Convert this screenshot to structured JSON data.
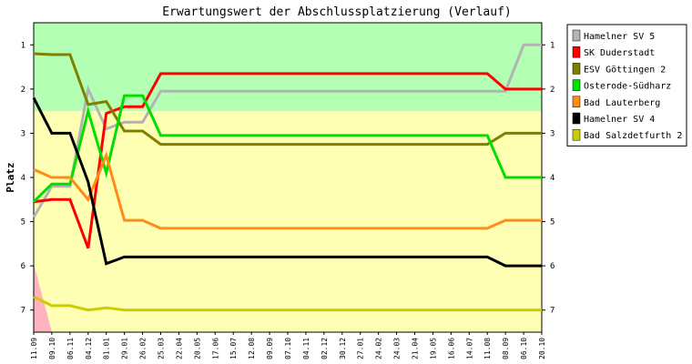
{
  "chart_data": {
    "type": "line",
    "title": "Erwartungswert der Abschlussplatzierung (Verlauf)",
    "ylabel": "Platz",
    "xlabel": "",
    "ylim": [
      7.5,
      0.5
    ],
    "yticks": [
      1,
      2,
      3,
      4,
      5,
      6,
      7
    ],
    "legend_position": "right",
    "grid": false,
    "bands": [
      {
        "from": 0.5,
        "to": 2.5,
        "color": "#b3ffb3"
      },
      {
        "from": 2.5,
        "to": 7.5,
        "color": "#ffffb3"
      }
    ],
    "relegation_shade_color": "#ffb3c1",
    "categories": [
      "11.09",
      "09.10",
      "06.11",
      "04.12",
      "01.01",
      "29.01",
      "26.02",
      "25.03",
      "22.04",
      "20.05",
      "17.06",
      "15.07",
      "12.08",
      "09.09",
      "07.10",
      "04.11",
      "02.12",
      "30.12",
      "27.01",
      "24.02",
      "24.03",
      "21.04",
      "19.05",
      "16.06",
      "14.07",
      "11.08",
      "08.09",
      "06.10",
      "20.10"
    ],
    "series": [
      {
        "name": "Hamelner SV 5",
        "color": "#b3b3b3",
        "values": [
          4.9,
          4.2,
          4.2,
          2.0,
          2.9,
          2.75,
          2.75,
          2.05,
          2.05,
          2.05,
          2.05,
          2.05,
          2.05,
          2.05,
          2.05,
          2.05,
          2.05,
          2.05,
          2.05,
          2.05,
          2.05,
          2.05,
          2.05,
          2.05,
          2.05,
          2.05,
          2.05,
          1.0,
          1.0
        ]
      },
      {
        "name": "SK Duderstadt",
        "color": "#ff0000",
        "values": [
          4.55,
          4.5,
          4.5,
          5.6,
          2.55,
          2.4,
          2.4,
          1.65,
          1.65,
          1.65,
          1.65,
          1.65,
          1.65,
          1.65,
          1.65,
          1.65,
          1.65,
          1.65,
          1.65,
          1.65,
          1.65,
          1.65,
          1.65,
          1.65,
          1.65,
          1.65,
          2.0,
          2.0,
          2.0
        ]
      },
      {
        "name": "ESV Göttingen 2",
        "color": "#808000",
        "values": [
          1.2,
          1.22,
          1.22,
          2.35,
          2.28,
          2.95,
          2.95,
          3.25,
          3.25,
          3.25,
          3.25,
          3.25,
          3.25,
          3.25,
          3.25,
          3.25,
          3.25,
          3.25,
          3.25,
          3.25,
          3.25,
          3.25,
          3.25,
          3.25,
          3.25,
          3.25,
          3.0,
          3.0,
          3.0
        ]
      },
      {
        "name": "Osterode-Südharz",
        "color": "#00e000",
        "values": [
          4.55,
          4.15,
          4.15,
          2.5,
          3.9,
          2.15,
          2.15,
          3.05,
          3.05,
          3.05,
          3.05,
          3.05,
          3.05,
          3.05,
          3.05,
          3.05,
          3.05,
          3.05,
          3.05,
          3.05,
          3.05,
          3.05,
          3.05,
          3.05,
          3.05,
          3.05,
          4.0,
          4.0,
          4.0
        ]
      },
      {
        "name": "Bad Lauterberg",
        "color": "#ff8c1a",
        "values": [
          3.82,
          4.0,
          4.0,
          4.5,
          3.5,
          4.97,
          4.97,
          5.15,
          5.15,
          5.15,
          5.15,
          5.15,
          5.15,
          5.15,
          5.15,
          5.15,
          5.15,
          5.15,
          5.15,
          5.15,
          5.15,
          5.15,
          5.15,
          5.15,
          5.15,
          5.15,
          4.97,
          4.97,
          4.97
        ]
      },
      {
        "name": "Hamelner SV 4",
        "color": "#000000",
        "values": [
          2.2,
          3.0,
          3.0,
          4.1,
          5.95,
          5.8,
          5.8,
          5.8,
          5.8,
          5.8,
          5.8,
          5.8,
          5.8,
          5.8,
          5.8,
          5.8,
          5.8,
          5.8,
          5.8,
          5.8,
          5.8,
          5.8,
          5.8,
          5.8,
          5.8,
          5.8,
          6.0,
          6.0,
          6.0
        ]
      },
      {
        "name": "Bad Salzdetfurth 2",
        "color": "#cccc00",
        "values": [
          6.7,
          6.9,
          6.9,
          7.0,
          6.95,
          7.0,
          7.0,
          7.0,
          7.0,
          7.0,
          7.0,
          7.0,
          7.0,
          7.0,
          7.0,
          7.0,
          7.0,
          7.0,
          7.0,
          7.0,
          7.0,
          7.0,
          7.0,
          7.0,
          7.0,
          7.0,
          7.0,
          7.0,
          7.0
        ]
      }
    ]
  }
}
